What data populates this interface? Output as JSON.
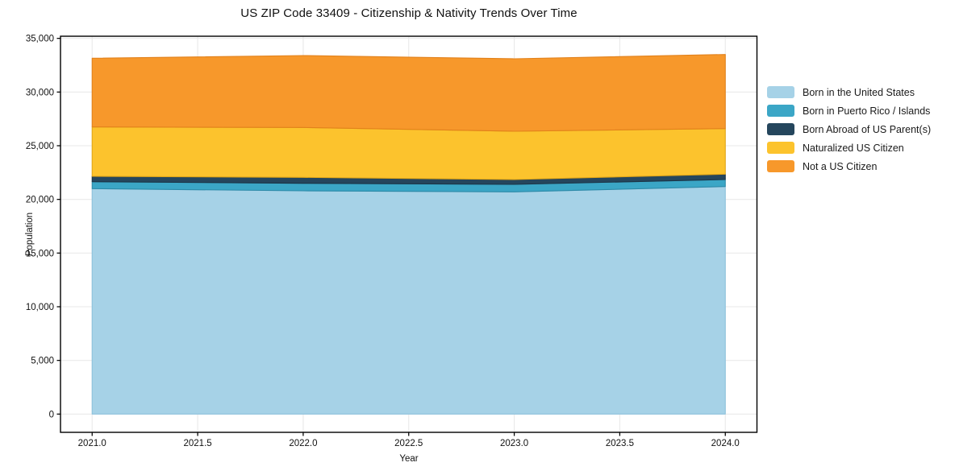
{
  "chart_data": {
    "type": "area",
    "stacked": true,
    "title": "US ZIP Code 33409 - Citizenship & Nativity Trends Over Time",
    "xlabel": "Year",
    "ylabel": "Population",
    "x": [
      2021,
      2022,
      2023,
      2024
    ],
    "series": [
      {
        "name": "Born in the United States",
        "color": "#a6d2e7",
        "edge_color": "#8ec2dd",
        "values": [
          21000,
          20800,
          20700,
          21200
        ]
      },
      {
        "name": "Born in Puerto Rico / Islands",
        "color": "#3ba6c6",
        "edge_color": "#2d8aa8",
        "values": [
          650,
          700,
          700,
          650
        ]
      },
      {
        "name": "Born Abroad of US Parent(s)",
        "color": "#25465d",
        "edge_color": "#1b3547",
        "values": [
          500,
          550,
          450,
          500
        ]
      },
      {
        "name": "Naturalized US Citizen",
        "color": "#fcc32d",
        "edge_color": "#e2a616",
        "values": [
          4600,
          4650,
          4500,
          4250
        ]
      },
      {
        "name": "Not a US Citizen",
        "color": "#f7982b",
        "edge_color": "#e2811b",
        "values": [
          6400,
          6700,
          6750,
          6900
        ]
      }
    ],
    "totals": [
      33150,
      33400,
      33100,
      33500
    ],
    "xlim": [
      2020.85,
      2024.15
    ],
    "ylim": [
      -1700,
      35200
    ],
    "xticks": {
      "values": [
        2021.0,
        2021.5,
        2022.0,
        2022.5,
        2023.0,
        2023.5,
        2024.0
      ],
      "labels": [
        "2021.0",
        "2021.5",
        "2022.0",
        "2022.5",
        "2023.0",
        "2023.5",
        "2024.0"
      ]
    },
    "yticks": {
      "values": [
        0,
        5000,
        10000,
        15000,
        20000,
        25000,
        30000,
        35000
      ],
      "labels": [
        "0",
        "5,000",
        "10,000",
        "15,000",
        "20,000",
        "25,000",
        "30,000",
        "35,000"
      ]
    },
    "grid": true,
    "legend_position": "right-outside"
  },
  "colors": {
    "background": "#ffffff",
    "grid": "#e9e9e9",
    "spine": "#000000",
    "text": "#111111"
  }
}
